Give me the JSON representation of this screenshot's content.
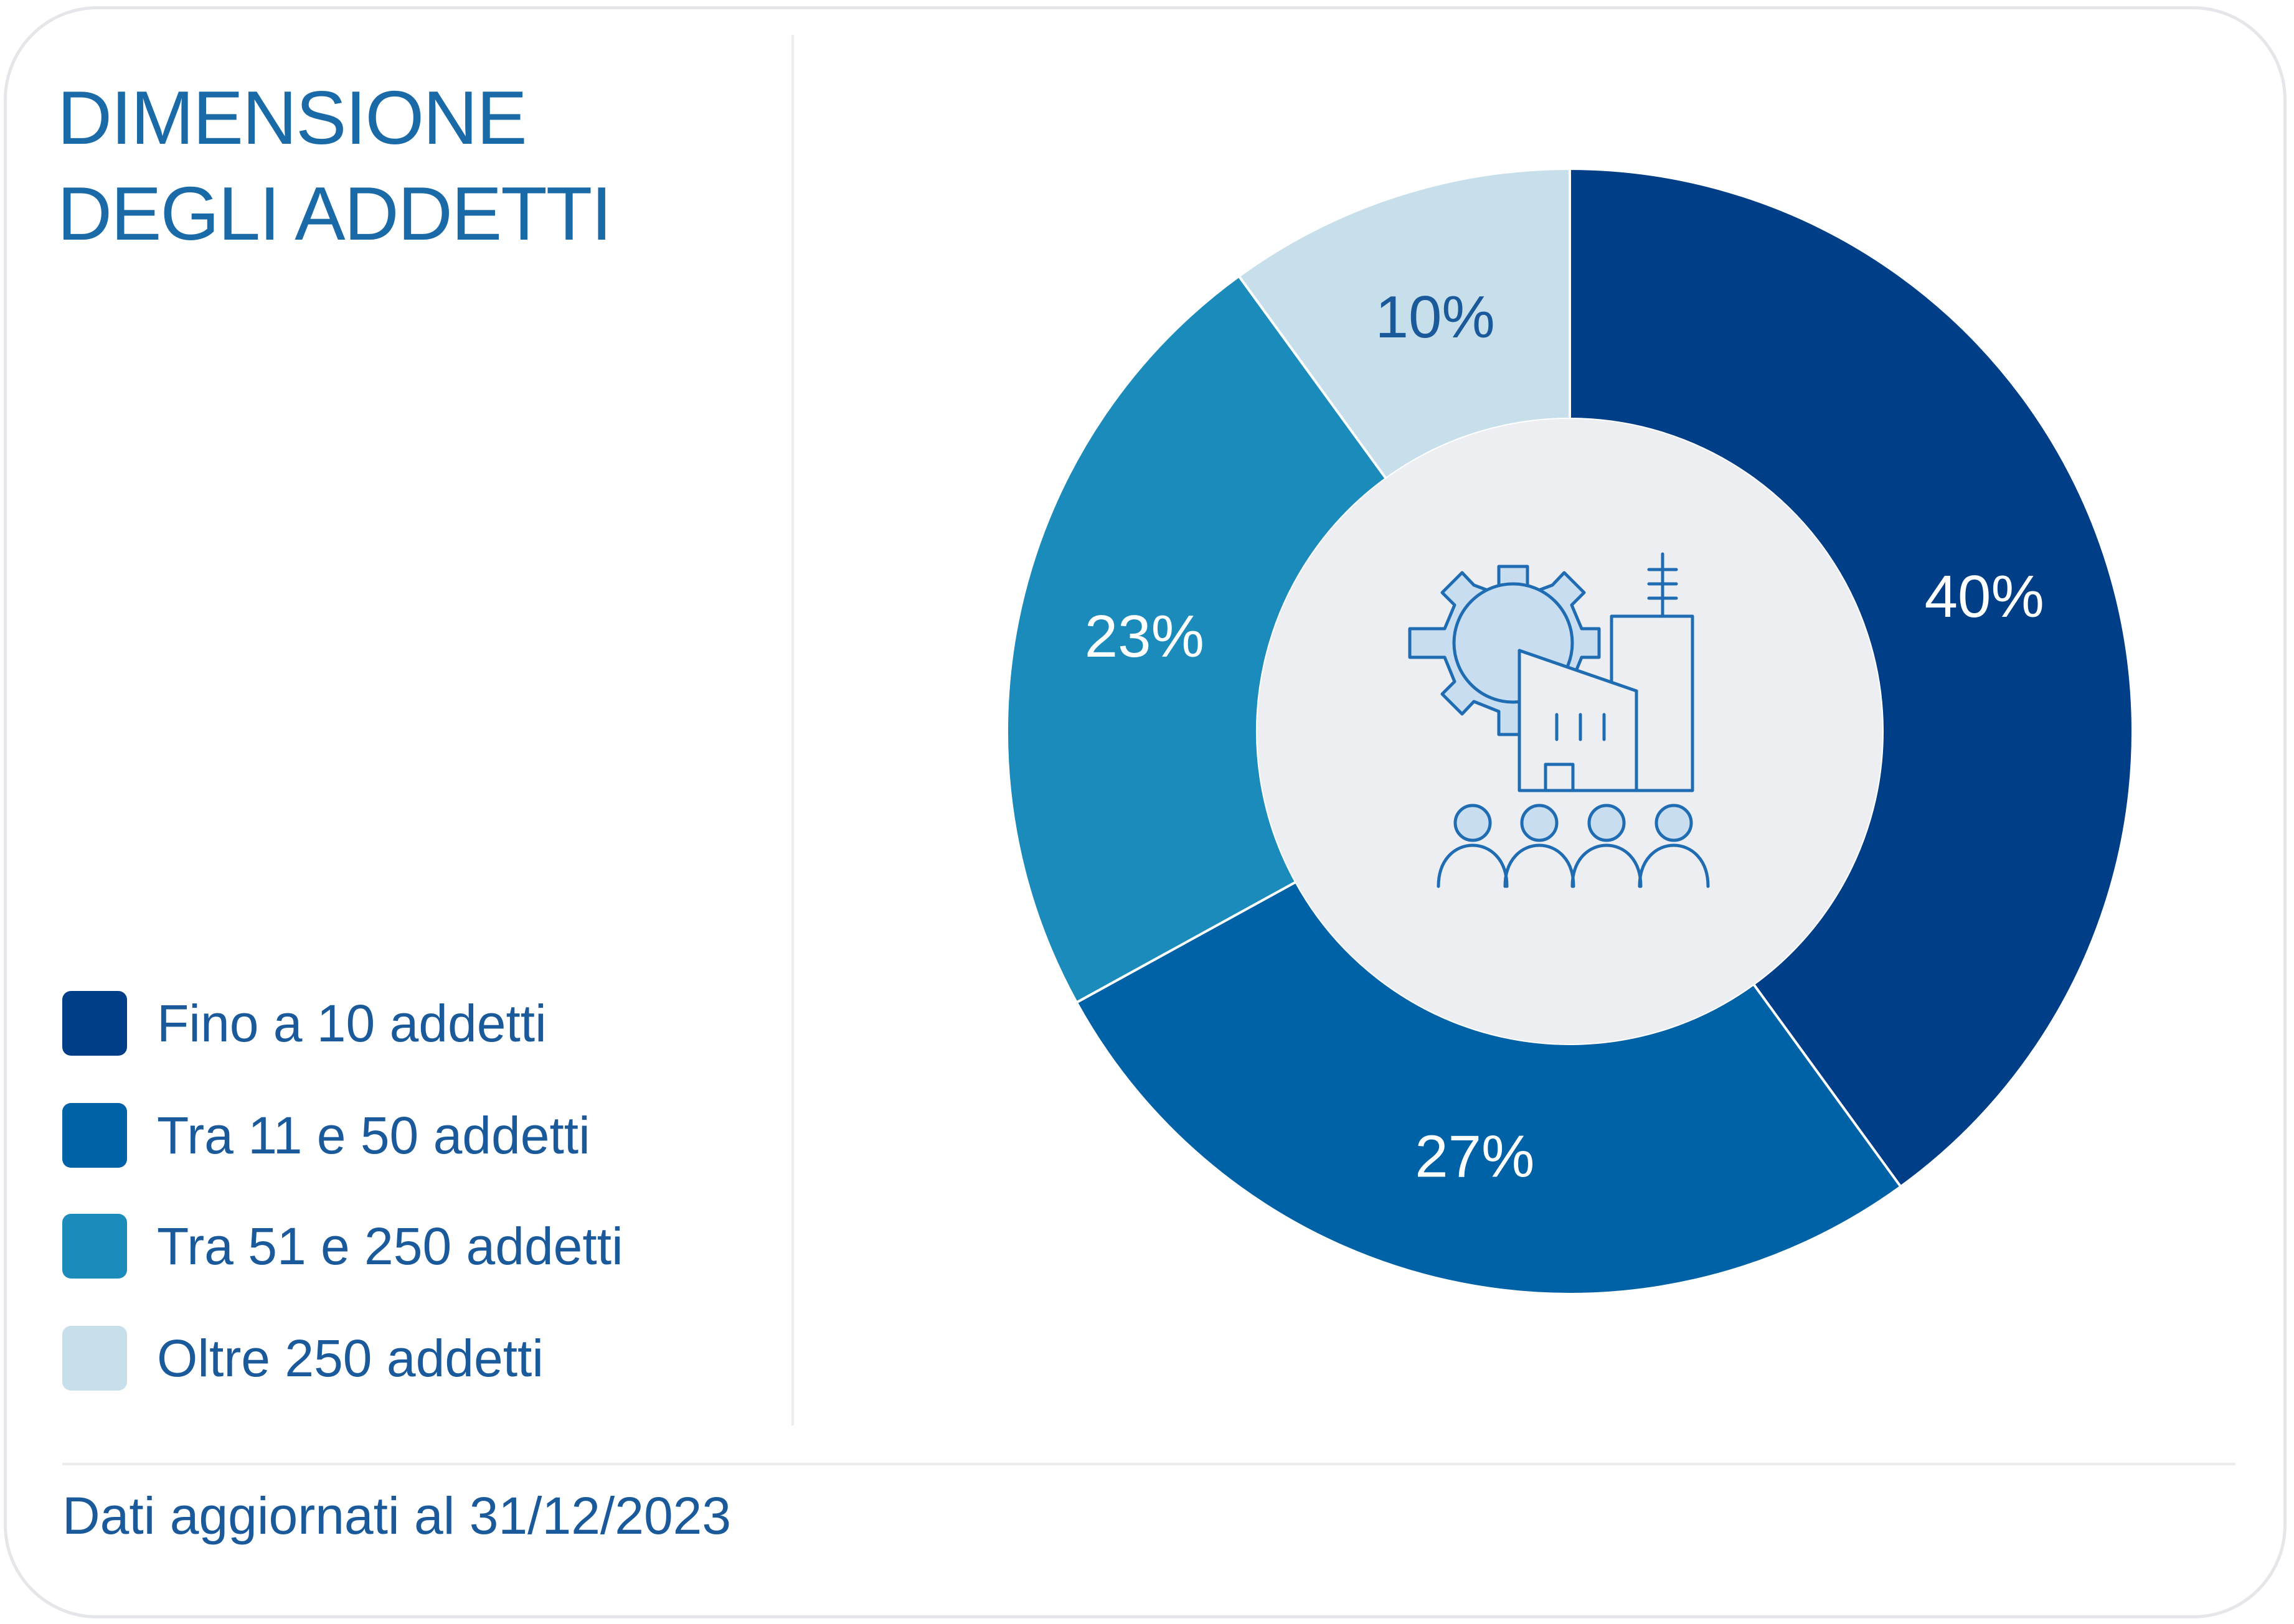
{
  "title": "DIMENSIONE\nDEGLI ADDETTI",
  "footnote": "Dati aggiornati al 31/12/2023",
  "icon": "factory-gear-people-icon",
  "colors": {
    "center": "#eceef1",
    "icon_stroke": "#1f6cb3",
    "icon_fill": "#c8def0"
  },
  "chart_data": {
    "type": "pie",
    "variant": "donut",
    "categories": [
      "Fino a 10 addetti",
      "Tra 11 e 50 addetti",
      "Tra 51 e 250 addetti",
      "Oltre 250 addetti"
    ],
    "values": [
      40,
      27,
      23,
      10
    ],
    "labels": [
      "40%",
      "27%",
      "23%",
      "10%"
    ],
    "colors": [
      "#003f87",
      "#0062a6",
      "#1a8bbb",
      "#c7deeb"
    ],
    "label_colors": [
      "#ffffff",
      "#ffffff",
      "#ffffff",
      "#1a5a9a"
    ],
    "legend_position": "bottom-left",
    "start": "top, clockwise"
  }
}
